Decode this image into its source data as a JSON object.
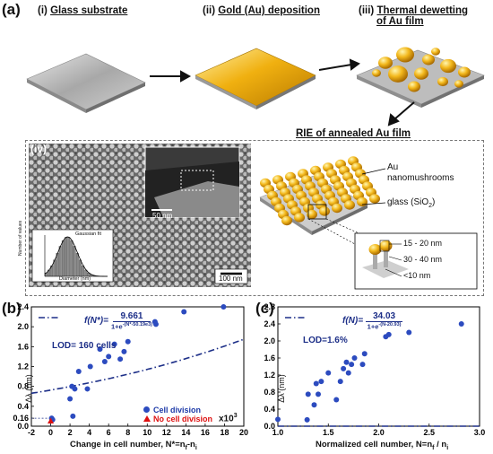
{
  "panel_a": {
    "tag": "(a)",
    "step1": {
      "num": "(i)",
      "label": "Glass substrate"
    },
    "step2": {
      "num": "(ii)",
      "label": "Gold (Au) deposition"
    },
    "step3": {
      "num": "(iii)",
      "label": "Thermal dewetting",
      "label2": "of Au film"
    },
    "step4": {
      "label": "RIE of annealed Au film"
    },
    "sub_tag": "(iv)",
    "scalebar_main": "100 nm",
    "scalebar_inset": "50 nm",
    "hist": {
      "title": "Gaussian fit",
      "xlabel": "Diameter (nm)",
      "ylabel": "Number of values",
      "xticks": [
        "0",
        "10",
        "20",
        "30",
        "40",
        "50"
      ],
      "yticks": [
        "0",
        "20",
        "40",
        "60",
        "80",
        "100",
        "120",
        "140",
        "160"
      ]
    },
    "labels": {
      "au": "Au",
      "nano": "nanomushrooms",
      "glass": "glass (SiO",
      "glass_sub": "2",
      "glass_end": ")",
      "d1": "15 - 20 nm",
      "d2": "30 - 40 nm",
      "d3": "<10 nm"
    }
  },
  "chart_data": [
    {
      "type": "scatter",
      "panel": "(b)",
      "formula_left": "f(N*)=",
      "formula_num": "9.661",
      "formula_den": "1+e",
      "formula_exp": "-(N*-50.19e3)",
      "lod": "LOD= 160 cells",
      "xlabel": "Change in cell number, N*=n",
      "xlabel_sub1": "f",
      "xlabel_mid": "-n",
      "xlabel_sub2": "i",
      "x_multiplier": "x10",
      "x_multiplier_exp": "3",
      "ylabel": "Δλ (nm)",
      "xlim": [
        -2,
        20
      ],
      "ylim": [
        0,
        2.4
      ],
      "xticks": [
        "-2",
        "0",
        "2",
        "4",
        "6",
        "8",
        "10",
        "12",
        "14",
        "16",
        "18",
        "20"
      ],
      "yticks": [
        "0.0",
        "0.16",
        "0.4",
        "0.8",
        "1.2",
        "1.6",
        "2.0",
        "2.4"
      ],
      "legend": [
        "Cell  division",
        "No cell division"
      ],
      "series": [
        {
          "name": "Cell  division",
          "x": [
            0.1,
            0.2,
            2.0,
            2.2,
            2.3,
            2.5,
            2.9,
            3.8,
            4.1,
            5.1,
            5.6,
            6.0,
            6.6,
            7.2,
            7.6,
            8.0,
            10.8,
            10.9,
            13.8,
            17.9
          ],
          "y": [
            0.16,
            0.13,
            0.55,
            0.8,
            0.2,
            0.75,
            1.1,
            0.75,
            1.2,
            1.55,
            1.3,
            1.4,
            1.65,
            1.35,
            1.5,
            1.7,
            2.1,
            2.05,
            2.3,
            2.4
          ]
        },
        {
          "name": "No cell division",
          "x": [
            0.0
          ],
          "y": [
            0.1
          ]
        }
      ],
      "fit": {
        "k": 9.661,
        "x0": 50.19
      }
    },
    {
      "type": "scatter",
      "panel": "(c)",
      "formula_left": "f(N)=",
      "formula_num": "34.03",
      "formula_den": "1+e",
      "formula_exp": "-(N-20.93)",
      "lod": "LOD=1.6%",
      "xlabel": "Normalized cell number, N=n",
      "xlabel_sub1": "f",
      "xlabel_mid": " / n",
      "xlabel_sub2": "i",
      "ylabel": "Δλ (nm)",
      "xlim": [
        1.0,
        3.0
      ],
      "ylim": [
        0,
        2.8
      ],
      "xticks": [
        "1.0",
        "1.5",
        "2.0",
        "2.5",
        "3.0"
      ],
      "yticks": [
        "0.0",
        "0.4",
        "0.8",
        "1.2",
        "1.6",
        "2.0",
        "2.4",
        "2.8"
      ],
      "series": [
        {
          "name": "",
          "x": [
            1.0,
            1.29,
            1.3,
            1.36,
            1.38,
            1.4,
            1.43,
            1.5,
            1.58,
            1.62,
            1.65,
            1.68,
            1.7,
            1.73,
            1.76,
            1.84,
            1.86,
            2.07,
            2.1,
            2.3,
            2.82
          ],
          "y": [
            0.16,
            0.15,
            0.75,
            0.5,
            1.0,
            0.75,
            1.05,
            1.25,
            0.62,
            1.05,
            1.35,
            1.5,
            1.25,
            1.45,
            1.6,
            1.45,
            1.7,
            2.1,
            2.15,
            2.2,
            2.4
          ]
        }
      ],
      "fit": {
        "k": 34.03,
        "x0": 20.93
      }
    }
  ]
}
